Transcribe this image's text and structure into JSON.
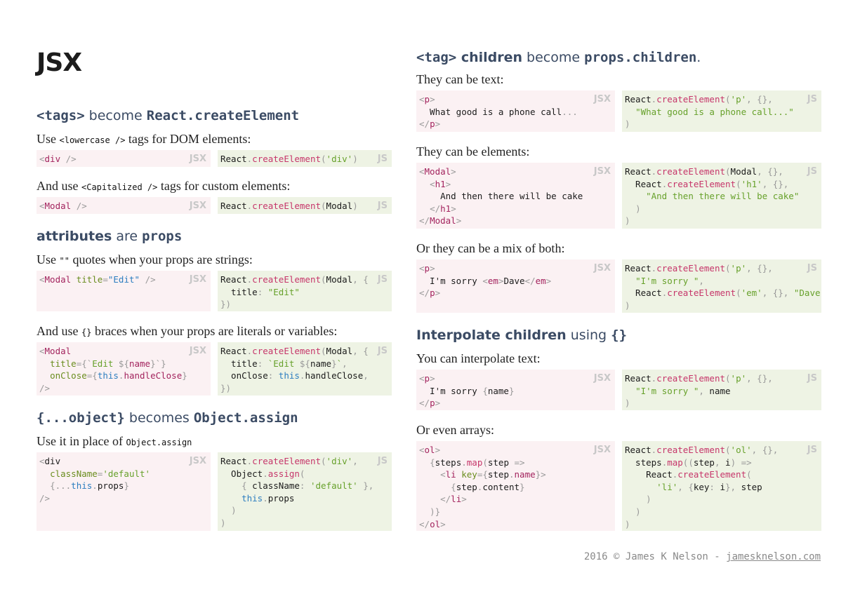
{
  "title": "JSX",
  "sections": {
    "tags": {
      "heading_code1": "<tags>",
      "heading_text": " become ",
      "heading_code2": "React.createElement",
      "p1_a": "Use ",
      "p1_code": "<lowercase />",
      "p1_b": " tags for DOM elements:",
      "p2_a": "And use ",
      "p2_code": "<Capitalized />",
      "p2_b": " tags for custom elements:"
    },
    "attributes": {
      "heading_b1": "attributes",
      "heading_text": " are ",
      "heading_b2": "props",
      "p1_a": "Use ",
      "p1_code": "\"\"",
      "p1_b": " quotes when your props are strings:",
      "p2_a": "And use ",
      "p2_code": "{}",
      "p2_b": " braces when your props are literals or variables:"
    },
    "spread": {
      "heading_code1": "{...object}",
      "heading_text": " becomes ",
      "heading_code2": "Object.assign",
      "p1_a": "Use it in place of ",
      "p1_code": "Object.assign"
    },
    "children": {
      "heading_code1": "<tag>",
      "heading_b1": " children",
      "heading_text": " become ",
      "heading_code2": "props.children",
      "heading_end": ".",
      "p1": "They can be text:",
      "p2": "They can be elements:",
      "p3": "Or they can be a mix of both:"
    },
    "interpolate": {
      "heading_b1": "Interpolate children",
      "heading_text": " using ",
      "heading_code": "{}",
      "p1": "You can interpolate text:",
      "p2": "Or even arrays:"
    }
  },
  "badges": {
    "jsx": "JSX",
    "js": "JS"
  },
  "footer": {
    "text": "2016 © James K Nelson - ",
    "link": "jamesknelson.com"
  },
  "colors": {
    "jsx_bg": "#fbf1f3",
    "js_bg": "#eef3e4",
    "heading": "#3b4b64",
    "tag": "#a3245e",
    "attr": "#6a8d1e",
    "string": "#67a12b",
    "func": "#c6366a",
    "keyword": "#2d7ec0"
  }
}
